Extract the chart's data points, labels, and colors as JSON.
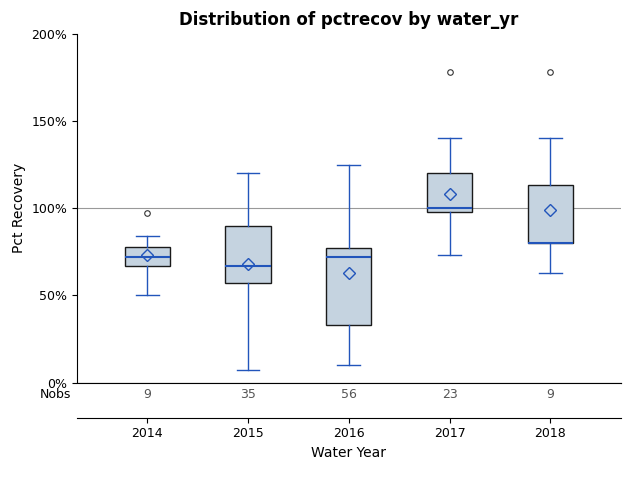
{
  "title": "Distribution of pctrecov by water_yr",
  "xlabel": "Water Year",
  "ylabel": "Pct Recovery",
  "categories": [
    "2014",
    "2015",
    "2016",
    "2017",
    "2018"
  ],
  "nobs": [
    9,
    35,
    56,
    23,
    9
  ],
  "box_data": {
    "2014": {
      "whislo": 50,
      "q1": 67,
      "median": 72,
      "q3": 78,
      "whishi": 84,
      "mean": 73,
      "fliers": [
        97
      ]
    },
    "2015": {
      "whislo": 7,
      "q1": 57,
      "median": 67,
      "q3": 90,
      "whishi": 120,
      "mean": 68,
      "fliers": []
    },
    "2016": {
      "whislo": 10,
      "q1": 33,
      "median": 72,
      "q3": 77,
      "whishi": 125,
      "mean": 63,
      "fliers": []
    },
    "2017": {
      "whislo": 73,
      "q1": 98,
      "median": 100,
      "q3": 120,
      "whishi": 140,
      "mean": 108,
      "fliers": [
        178
      ]
    },
    "2018": {
      "whislo": 63,
      "q1": 80,
      "median": 80,
      "q3": 113,
      "whishi": 140,
      "mean": 99,
      "fliers": [
        178
      ]
    }
  },
  "ylim": [
    0,
    200
  ],
  "yticks": [
    0,
    50,
    100,
    150,
    200
  ],
  "ytick_labels": [
    "0%",
    "50%",
    "100%",
    "150%",
    "200%"
  ],
  "hline_y": 100,
  "box_facecolor": "#c5d3e0",
  "box_edgecolor": "#1a1a1a",
  "whisker_color": "#2255bb",
  "median_color": "#2255bb",
  "flier_color": "#333333",
  "mean_color": "#2255bb",
  "bg_color": "#ffffff",
  "plot_bg_color": "#ffffff",
  "nobs_label": "Nobs",
  "title_fontsize": 12,
  "axis_label_fontsize": 10,
  "tick_fontsize": 9,
  "nobs_fontsize": 9
}
